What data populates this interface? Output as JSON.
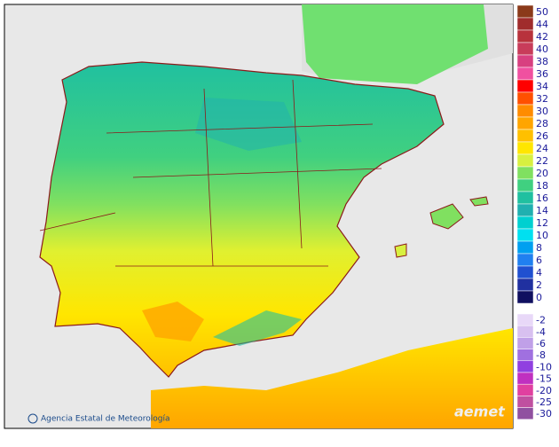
{
  "footer": {
    "agency": "Agencia Estatal de Meteorología",
    "logo": "aemet"
  },
  "legend": {
    "upper": [
      {
        "value": 50,
        "color": "#8b3a1a"
      },
      {
        "value": 44,
        "color": "#a02c2c"
      },
      {
        "value": 42,
        "color": "#b8323c"
      },
      {
        "value": 40,
        "color": "#c83c5a"
      },
      {
        "value": 38,
        "color": "#d84080"
      },
      {
        "value": 36,
        "color": "#f050a0"
      },
      {
        "value": 34,
        "color": "#ff0000"
      },
      {
        "value": 32,
        "color": "#ff5000"
      },
      {
        "value": 30,
        "color": "#ff8c00"
      },
      {
        "value": 28,
        "color": "#ffa500"
      },
      {
        "value": 26,
        "color": "#ffc000"
      },
      {
        "value": 24,
        "color": "#ffe600"
      },
      {
        "value": 22,
        "color": "#d8f040"
      },
      {
        "value": 20,
        "color": "#80e060"
      },
      {
        "value": 18,
        "color": "#40d080"
      },
      {
        "value": 16,
        "color": "#20c0a0"
      },
      {
        "value": 14,
        "color": "#20b0b0"
      },
      {
        "value": 12,
        "color": "#00d0d0"
      },
      {
        "value": 10,
        "color": "#00e0f0"
      },
      {
        "value": 8,
        "color": "#00a0f0"
      },
      {
        "value": 6,
        "color": "#2080f0"
      },
      {
        "value": 4,
        "color": "#2050d0"
      },
      {
        "value": 2,
        "color": "#2030a0"
      },
      {
        "value": 0,
        "color": "#101060"
      }
    ],
    "lower": [
      {
        "value": -2,
        "color": "#e8d8f8"
      },
      {
        "value": -4,
        "color": "#d8c0f0"
      },
      {
        "value": -6,
        "color": "#c0a0e8"
      },
      {
        "value": -8,
        "color": "#a070e0"
      },
      {
        "value": -10,
        "color": "#9040e0"
      },
      {
        "value": -15,
        "color": "#c030c0"
      },
      {
        "value": -20,
        "color": "#e040a0"
      },
      {
        "value": -25,
        "color": "#c050a0"
      },
      {
        "value": -30,
        "color": "#9050a0"
      }
    ]
  }
}
